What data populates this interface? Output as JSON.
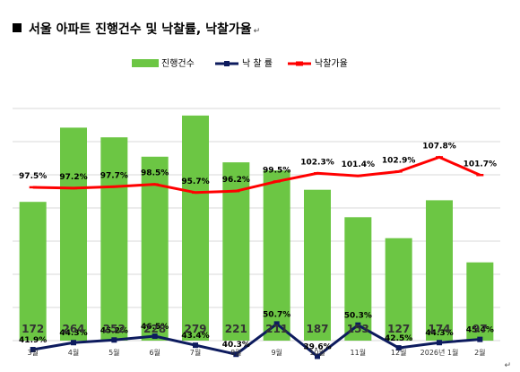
{
  "title": "서울 아파트 진행건수 및 낙찰률, 낙찰가율",
  "title_mark": "↵",
  "footer_mark": "↵",
  "colors": {
    "bar": "#6cc644",
    "rate_line": "#0d1b5e",
    "price_line": "#ff0000",
    "grid": "#d9d9d9"
  },
  "chart_data": {
    "type": "bar",
    "categories": [
      "3월",
      "4월",
      "5월",
      "6월",
      "7월",
      "8월",
      "9월",
      "10월",
      "11월",
      "12월",
      "2026년 1월",
      "2월"
    ],
    "legend_position": "top",
    "grid": true,
    "series": [
      {
        "name": "진행건수",
        "type": "bar",
        "values": [
          172,
          264,
          252,
          228,
          279,
          221,
          211,
          187,
          153,
          127,
          174,
          97
        ]
      },
      {
        "name": "낙 찰 률",
        "type": "line",
        "values": [
          41.9,
          44.3,
          45.2,
          46.5,
          43.4,
          40.3,
          50.7,
          39.6,
          50.3,
          42.5,
          44.3,
          45.4
        ]
      },
      {
        "name": "낙찰가율",
        "type": "line",
        "values": [
          97.5,
          97.2,
          97.7,
          98.5,
          95.7,
          96.2,
          99.5,
          102.3,
          101.4,
          102.9,
          107.8,
          101.7
        ]
      }
    ],
    "bar_labels": [
      "172",
      "264",
      "252",
      "228",
      "279",
      "221",
      "211",
      "187",
      "153",
      "127",
      "174",
      "97"
    ],
    "rate_labels": [
      "41.9%",
      "44.3%",
      "45.2%",
      "46.5%",
      "43.4%",
      "40.3%",
      "50.7%",
      "39.6%",
      "50.3%",
      "42.5%",
      "44.3%",
      "45.4%"
    ],
    "price_labels": [
      "97.5%",
      "97.2%",
      "97.7%",
      "98.5%",
      "95.7%",
      "96.2%",
      "99.5%",
      "102.3%",
      "101.4%",
      "102.9%",
      "107.8%",
      "101.7%"
    ]
  }
}
